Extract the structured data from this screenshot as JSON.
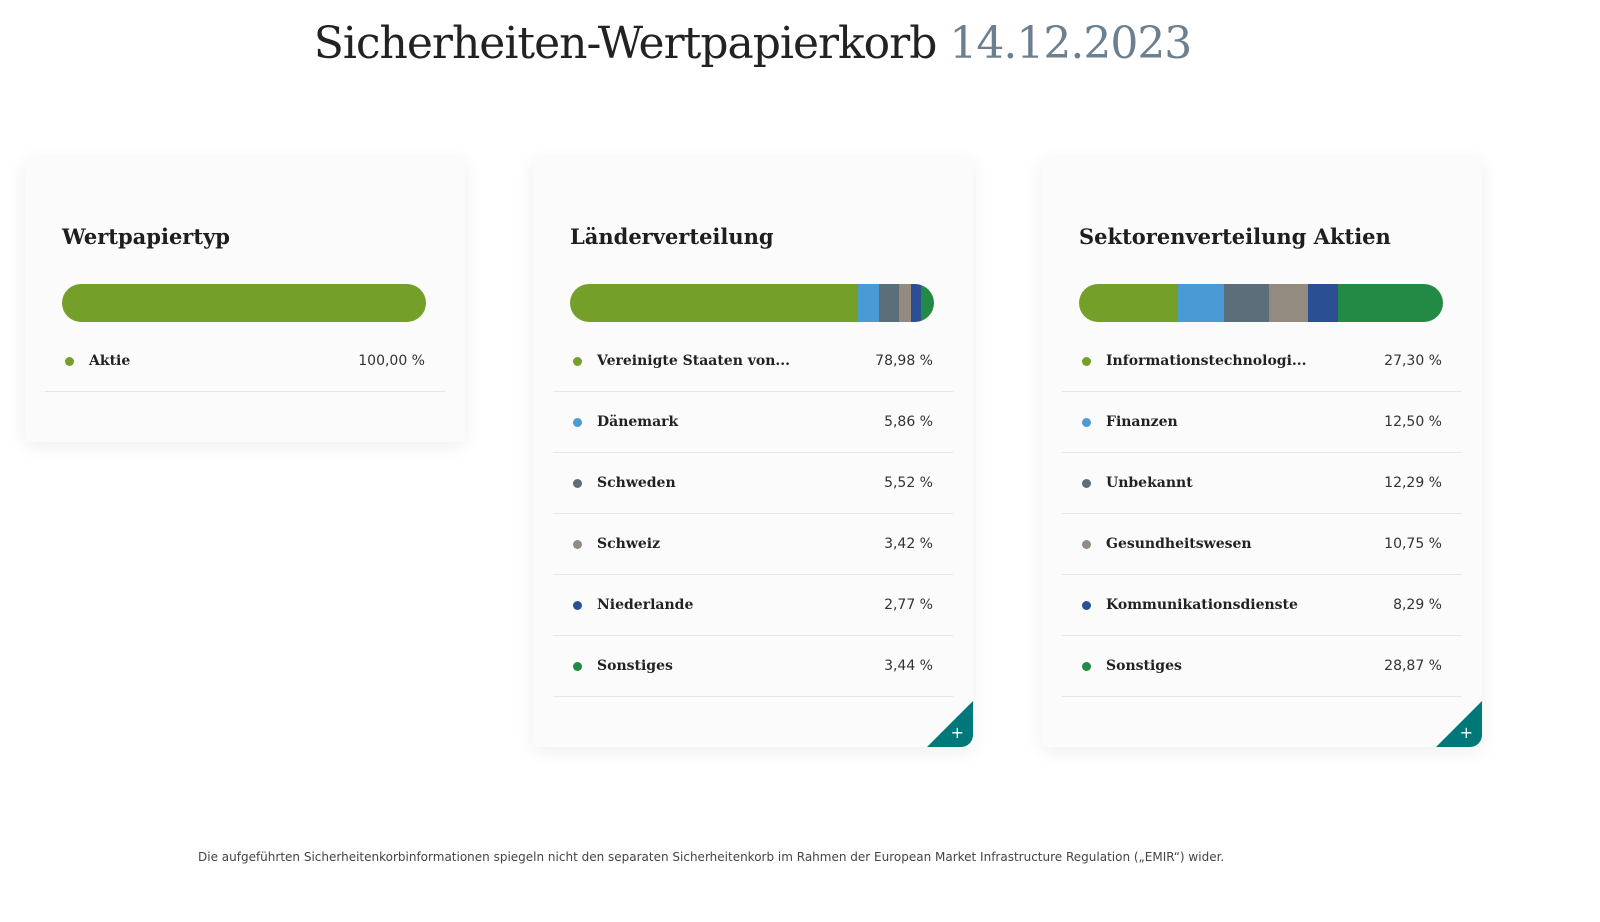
{
  "header": {
    "title": "Sicherheiten-Wertpapierkorb",
    "date": "14.12.2023"
  },
  "colors": {
    "green": "#74a02a",
    "blue": "#4a9bd4",
    "slate": "#5b6e7a",
    "taupe": "#938a80",
    "navy": "#2c4f94",
    "darkgreen": "#238a45",
    "teal": "#00787a"
  },
  "cards": [
    {
      "title": "Wertpapiertyp",
      "items": [
        {
          "label": "Aktie",
          "value": "100,00 %",
          "pct": 100,
          "color": "#74a02a"
        }
      ]
    },
    {
      "title": "Länderverteilung",
      "expand_icon": "plus-icon",
      "items": [
        {
          "label": "Vereinigte Staaten von...",
          "value": "78,98 %",
          "pct": 78.98,
          "color": "#74a02a"
        },
        {
          "label": "Dänemark",
          "value": "5,86 %",
          "pct": 5.86,
          "color": "#4a9bd4"
        },
        {
          "label": "Schweden",
          "value": "5,52 %",
          "pct": 5.52,
          "color": "#5b6e7a"
        },
        {
          "label": "Schweiz",
          "value": "3,42 %",
          "pct": 3.42,
          "color": "#938a80"
        },
        {
          "label": "Niederlande",
          "value": "2,77 %",
          "pct": 2.77,
          "color": "#2c4f94"
        },
        {
          "label": "Sonstiges",
          "value": "3,44 %",
          "pct": 3.44,
          "color": "#238a45"
        }
      ]
    },
    {
      "title": "Sektorenverteilung Aktien",
      "expand_icon": "plus-icon",
      "items": [
        {
          "label": "Informationstechnologi...",
          "value": "27,30 %",
          "pct": 27.3,
          "color": "#74a02a"
        },
        {
          "label": "Finanzen",
          "value": "12,50 %",
          "pct": 12.5,
          "color": "#4a9bd4"
        },
        {
          "label": "Unbekannt",
          "value": "12,29 %",
          "pct": 12.29,
          "color": "#5b6e7a"
        },
        {
          "label": "Gesundheitswesen",
          "value": "10,75 %",
          "pct": 10.75,
          "color": "#938a80"
        },
        {
          "label": "Kommunikationsdienste",
          "value": "8,29 %",
          "pct": 8.29,
          "color": "#2c4f94"
        },
        {
          "label": "Sonstiges",
          "value": "28,87 %",
          "pct": 28.87,
          "color": "#238a45"
        }
      ]
    }
  ],
  "footer": "Die aufgeführten Sicherheitenkorbinformationen spiegeln nicht den separaten Sicherheitenkorb im Rahmen der European Market Infrastructure Regulation („EMIR“) wider."
}
